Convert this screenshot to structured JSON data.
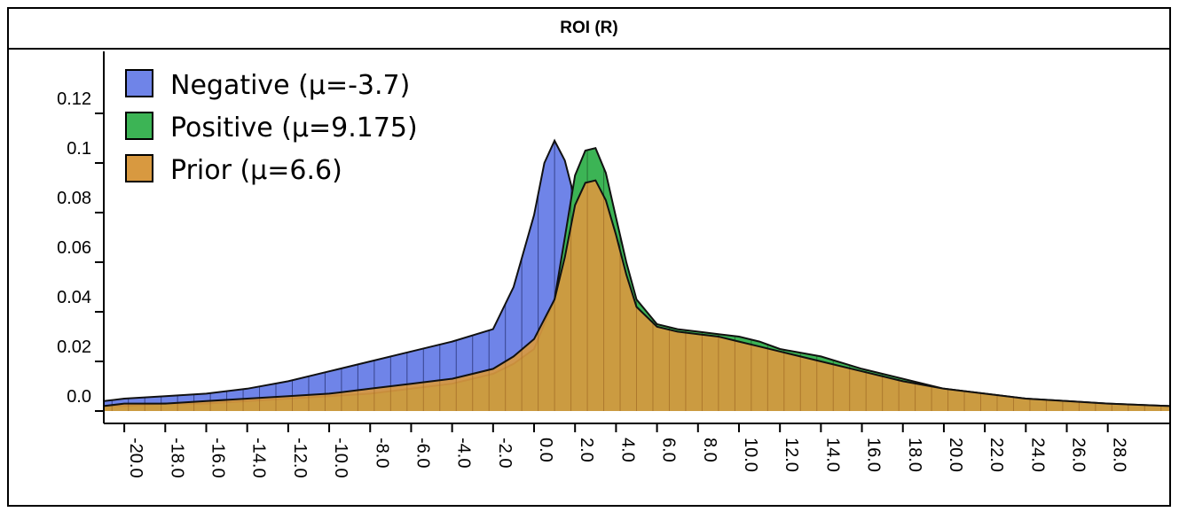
{
  "chart_data": {
    "type": "area",
    "title": "ROI (R)",
    "xlabel": "",
    "ylabel": "",
    "xlim": [
      -21.0,
      31.0
    ],
    "ylim": [
      -0.005,
      0.145
    ],
    "grid": false,
    "legend_position": "top-left",
    "y_ticks": [
      "0.0",
      "0.02",
      "0.04",
      "0.06",
      "0.08",
      "0.1",
      "0.12"
    ],
    "x_ticks": [
      "-20.0",
      "-18.0",
      "-16.0",
      "-14.0",
      "-12.0",
      "-10.0",
      "-8.0",
      "-6.0",
      "-4.0",
      "-2.0",
      "0.0",
      "2.0",
      "4.0",
      "6.0",
      "8.0",
      "10.0",
      "12.0",
      "14.0",
      "16.0",
      "18.0",
      "20.0",
      "22.0",
      "24.0",
      "26.0",
      "28.0"
    ],
    "series": [
      {
        "name": "Negative (μ=-3.7)",
        "color": "#6f84e8",
        "x": [
          -21,
          -20,
          -18,
          -16,
          -14,
          -12,
          -10,
          -8,
          -6,
          -4,
          -2,
          -1,
          0,
          0.5,
          1,
          1.5,
          2,
          2.5,
          3,
          3.5,
          4,
          5,
          6,
          8,
          10,
          12,
          14,
          16,
          18,
          20,
          22,
          24,
          26,
          28,
          31
        ],
        "y": [
          0.004,
          0.005,
          0.006,
          0.007,
          0.009,
          0.012,
          0.016,
          0.02,
          0.024,
          0.028,
          0.033,
          0.05,
          0.079,
          0.1,
          0.109,
          0.101,
          0.085,
          0.065,
          0.048,
          0.038,
          0.031,
          0.026,
          0.022,
          0.018,
          0.015,
          0.012,
          0.01,
          0.008,
          0.006,
          0.005,
          0.004,
          0.004,
          0.003,
          0.002,
          0.002
        ]
      },
      {
        "name": "Positive (μ=9.175)",
        "color": "#3cb455",
        "x": [
          -21,
          -20,
          -18,
          -16,
          -14,
          -12,
          -10,
          -8,
          -6,
          -4,
          -2,
          -1,
          0,
          1,
          1.5,
          2,
          2.5,
          3,
          3.5,
          4,
          4.5,
          5,
          6,
          7,
          8,
          9,
          10,
          11,
          12,
          14,
          16,
          18,
          20,
          22,
          24,
          26,
          28,
          31
        ],
        "y": [
          0.002,
          0.002,
          0.003,
          0.003,
          0.004,
          0.005,
          0.006,
          0.007,
          0.009,
          0.011,
          0.015,
          0.019,
          0.025,
          0.045,
          0.07,
          0.095,
          0.105,
          0.106,
          0.096,
          0.078,
          0.06,
          0.045,
          0.035,
          0.033,
          0.032,
          0.031,
          0.03,
          0.028,
          0.025,
          0.022,
          0.017,
          0.013,
          0.009,
          0.007,
          0.005,
          0.004,
          0.003,
          0.002
        ]
      },
      {
        "name": "Prior (μ=6.6)",
        "color": "#d89940",
        "x": [
          -21,
          -20,
          -18,
          -16,
          -14,
          -12,
          -10,
          -8,
          -6,
          -4,
          -2,
          -1,
          0,
          1,
          1.5,
          2,
          2.5,
          3,
          3.5,
          4,
          4.5,
          5,
          6,
          7,
          8,
          9,
          10,
          11,
          12,
          14,
          16,
          18,
          20,
          22,
          24,
          26,
          28,
          31
        ],
        "y": [
          0.002,
          0.003,
          0.003,
          0.004,
          0.005,
          0.006,
          0.007,
          0.009,
          0.011,
          0.013,
          0.017,
          0.022,
          0.029,
          0.045,
          0.062,
          0.083,
          0.092,
          0.093,
          0.085,
          0.071,
          0.055,
          0.042,
          0.034,
          0.032,
          0.031,
          0.03,
          0.028,
          0.026,
          0.024,
          0.02,
          0.016,
          0.012,
          0.009,
          0.007,
          0.005,
          0.004,
          0.003,
          0.002
        ]
      }
    ]
  }
}
